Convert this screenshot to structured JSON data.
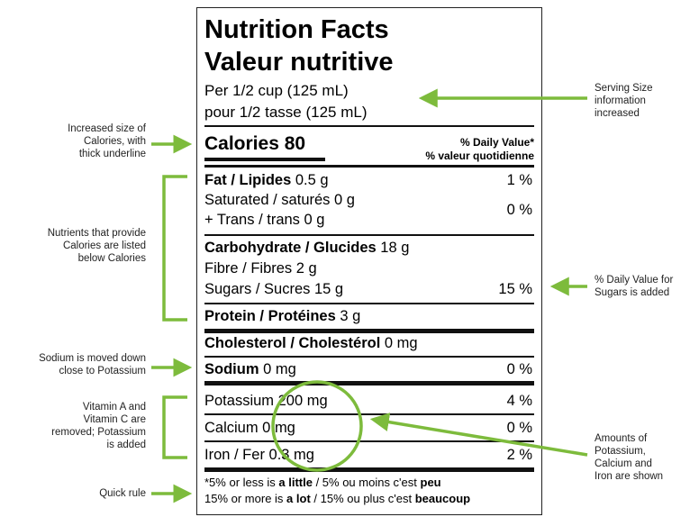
{
  "label": {
    "title_en": "Nutrition Facts",
    "title_fr": "Valeur nutritive",
    "serving_en": "Per 1/2 cup (125 mL)",
    "serving_fr": "pour 1/2 tasse (125 mL)",
    "calories": "Calories 80",
    "dv_header_en": "% Daily Value*",
    "dv_header_fr": "% valeur quotidienne",
    "fat_bold": "Fat / Lipides",
    "fat_amount": " 0.5 g",
    "fat_dv": "1 %",
    "saturated": "Saturated / saturés 0 g",
    "trans": "+ Trans / trans 0 g",
    "sat_trans_dv": "0 %",
    "carb_bold": "Carbohydrate / Glucides",
    "carb_amount": " 18 g",
    "fibre": "Fibre / Fibres 2 g",
    "sugars": "Sugars / Sucres 15 g",
    "sugars_dv": "15 %",
    "protein_bold": "Protein / Protéines",
    "protein_amount": " 3 g",
    "cholesterol_bold": "Cholesterol / Cholestérol",
    "cholesterol_amount": " 0 mg",
    "sodium_bold": "Sodium",
    "sodium_amount": " 0 mg",
    "sodium_dv": "0 %",
    "potassium": "Potassium 200 mg",
    "potassium_dv": "4 %",
    "calcium": "Calcium 0 mg",
    "calcium_dv": "0 %",
    "iron": "Iron / Fer 0.3 mg",
    "iron_dv": "2 %",
    "footnote1_a": "*5% or less is ",
    "footnote1_b": "a little",
    "footnote1_c": " / 5% ou moins c'est ",
    "footnote1_d": "peu",
    "footnote2_a": "15% or more is ",
    "footnote2_b": "a lot",
    "footnote2_c": " / 15% ou plus c'est ",
    "footnote2_d": "beaucoup"
  },
  "annotations": {
    "serving": "Serving Size\ninformation\nincreased",
    "calories": "Increased size of\nCalories, with\nthick underline",
    "nutrients": "Nutrients that provide\nCalories are listed\nbelow Calories",
    "sugars_dv": "% Daily Value for\nSugars is added",
    "sodium": "Sodium is moved down\nclose to Potassium",
    "vitamins": "Vitamin A and\nVitamin C are\nremoved; Potassium\nis added",
    "minerals": "Amounts of\nPotassium,\nCalcium and\nIron are shown",
    "quick_rule": "Quick rule"
  },
  "colors": {
    "accent": "#7dbb3c",
    "rule": "#111111"
  }
}
